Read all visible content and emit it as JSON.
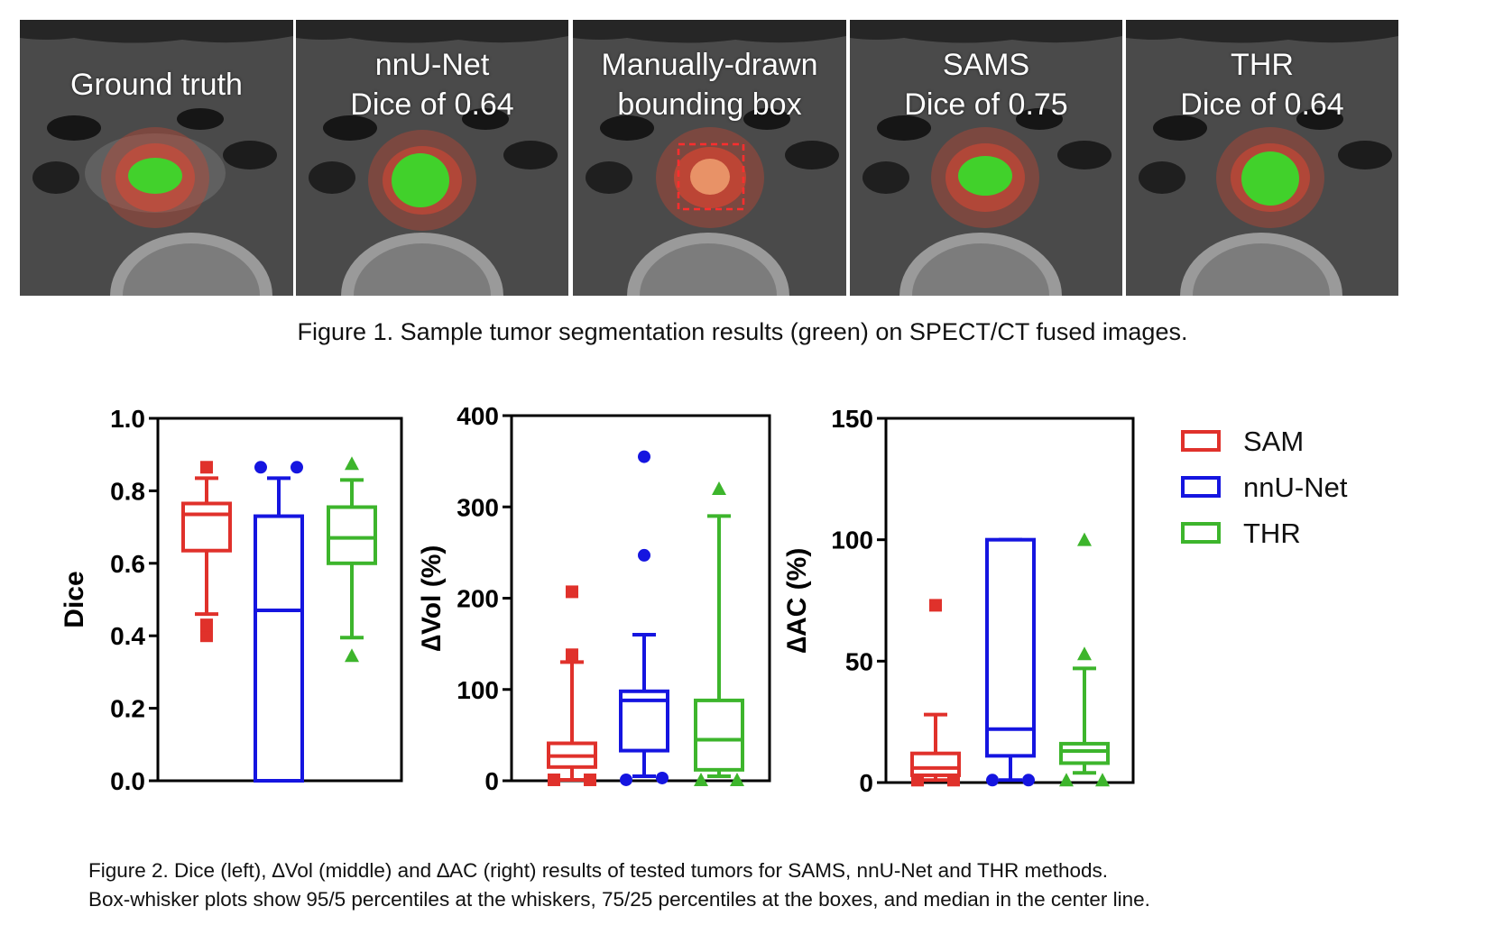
{
  "figure1": {
    "panels": [
      {
        "line1": "Ground truth",
        "line2": ""
      },
      {
        "line1": "nnU-Net",
        "line2": "Dice of 0.64"
      },
      {
        "line1": "Manually-drawn",
        "line2": "bounding box"
      },
      {
        "line1": "SAMS",
        "line2": "Dice of 0.75"
      },
      {
        "line1": "THR",
        "line2": "Dice of 0.64"
      }
    ],
    "caption": "Figure 1. Sample tumor segmentation results (green) on SPECT/CT fused images."
  },
  "figure2": {
    "caption_line1": "Figure 2. Dice (left), ∆Vol (middle) and ∆AC (right) results of tested tumors for SAMS, nnU-Net and THR methods.",
    "caption_line2": "Box-whisker plots show 95/5 percentiles at the whiskers, 75/25 percentiles at the boxes, and median in the center line."
  },
  "colors": {
    "SAM": "#e0312b",
    "nnU-Net": "#1515e0",
    "THR": "#3db52c",
    "tumor_green": "#35e02a",
    "uptake_red": "#e8452f"
  },
  "chart_data": [
    {
      "type": "box",
      "ylabel": "Dice",
      "ylim": [
        0,
        1.0
      ],
      "yticks": [
        "0.0",
        "0.2",
        "0.4",
        "0.6",
        "0.8",
        "1.0"
      ],
      "series": [
        {
          "name": "SAM",
          "marker": "square",
          "whisker_low": 0.46,
          "q1": 0.635,
          "median": 0.735,
          "q3": 0.765,
          "whisker_high": 0.835,
          "outliers": [
            0.865,
            0.4,
            0.43
          ]
        },
        {
          "name": "nnU-Net",
          "marker": "circle",
          "whisker_low": 0.0,
          "q1": 0.0,
          "median": 0.47,
          "q3": 0.73,
          "whisker_high": 0.835,
          "outliers": [
            0.865,
            0.865
          ]
        },
        {
          "name": "THR",
          "marker": "triangle",
          "whisker_low": 0.395,
          "q1": 0.6,
          "median": 0.67,
          "q3": 0.755,
          "whisker_high": 0.83,
          "outliers": [
            0.875,
            0.345
          ]
        }
      ]
    },
    {
      "type": "box",
      "ylabel": "∆Vol (%)",
      "ylim": [
        0,
        400
      ],
      "yticks": [
        "0",
        "100",
        "200",
        "300",
        "400"
      ],
      "series": [
        {
          "name": "SAM",
          "marker": "square",
          "whisker_low": 1,
          "q1": 15,
          "median": 27,
          "q3": 41,
          "whisker_high": 130,
          "outliers": [
            207,
            138,
            1,
            1
          ]
        },
        {
          "name": "nnU-Net",
          "marker": "circle",
          "whisker_low": 5,
          "q1": 33,
          "median": 88,
          "q3": 98,
          "whisker_high": 160,
          "outliers": [
            355,
            247,
            1,
            3
          ]
        },
        {
          "name": "THR",
          "marker": "triangle",
          "whisker_low": 5,
          "q1": 12,
          "median": 45,
          "q3": 88,
          "whisker_high": 290,
          "outliers": [
            320,
            1,
            1
          ]
        }
      ]
    },
    {
      "type": "box",
      "ylabel": "∆AC (%)",
      "ylim": [
        0,
        150
      ],
      "yticks": [
        "0",
        "50",
        "100",
        "150"
      ],
      "series": [
        {
          "name": "SAM",
          "marker": "square",
          "whisker_low": 1,
          "q1": 3,
          "median": 6,
          "q3": 12,
          "whisker_high": 28,
          "outliers": [
            73,
            1,
            1
          ]
        },
        {
          "name": "nnU-Net",
          "marker": "circle",
          "whisker_low": 1,
          "q1": 11,
          "median": 22,
          "q3": 100,
          "whisker_high": 100,
          "outliers": [
            1,
            1
          ]
        },
        {
          "name": "THR",
          "marker": "triangle",
          "whisker_low": 4,
          "q1": 8,
          "median": 13,
          "q3": 16,
          "whisker_high": 47,
          "outliers": [
            100,
            53,
            1,
            1
          ]
        }
      ]
    }
  ],
  "legend": {
    "placement": "right",
    "items": [
      {
        "label": "SAM",
        "color": "#e0312b"
      },
      {
        "label": "nnU-Net",
        "color": "#1515e0"
      },
      {
        "label": "THR",
        "color": "#3db52c"
      }
    ]
  }
}
